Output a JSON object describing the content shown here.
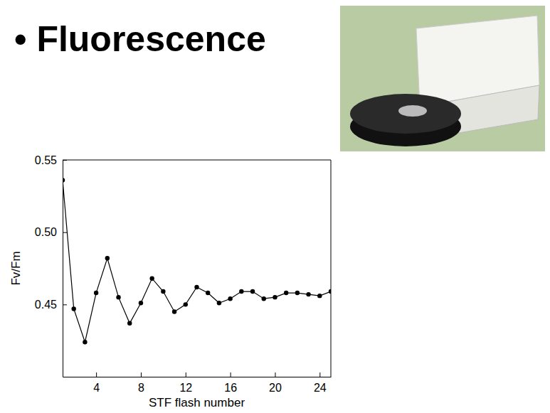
{
  "chart_data": {
    "type": "line",
    "title": "• Fluorescence",
    "x_label": "STF flash number",
    "y_label": "Fv/Fm",
    "x": [
      1,
      2,
      3,
      4,
      5,
      6,
      7,
      8,
      9,
      10,
      11,
      12,
      13,
      14,
      15,
      16,
      17,
      18,
      19,
      20,
      21,
      22,
      23,
      24,
      25
    ],
    "values": [
      0.536,
      0.447,
      0.424,
      0.458,
      0.482,
      0.455,
      0.437,
      0.451,
      0.468,
      0.459,
      0.445,
      0.45,
      0.462,
      0.458,
      0.451,
      0.454,
      0.459,
      0.459,
      0.454,
      0.455,
      0.458,
      0.458,
      0.457,
      0.456,
      0.459
    ],
    "color": "#000000",
    "marker": "circle",
    "line_style": "solid",
    "xlim": [
      1,
      25
    ],
    "xticks": [
      4,
      8,
      12,
      16,
      20,
      24
    ],
    "ylim": [
      0.4,
      0.55
    ],
    "yticks": [
      0.45,
      {
        "value": 0.5,
        "label": "0.50"
      },
      0.55
    ],
    "grid": false
  }
}
